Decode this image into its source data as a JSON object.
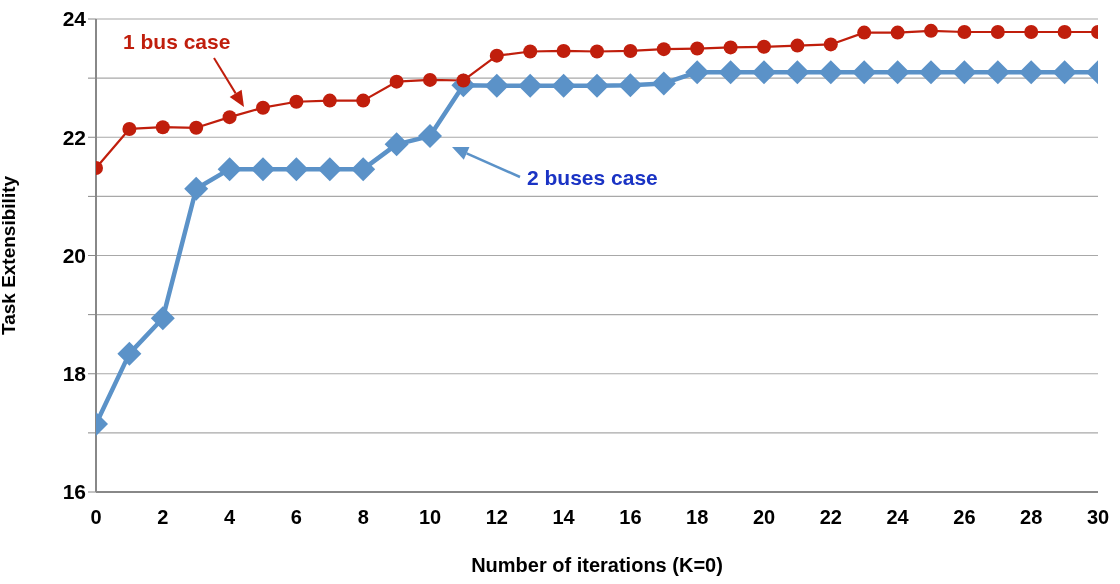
{
  "chart_data": {
    "type": "line",
    "xlabel": "Number of iterations (K=0)",
    "ylabel": "Task Extensibility",
    "x": [
      0,
      1,
      2,
      3,
      4,
      5,
      6,
      7,
      8,
      9,
      10,
      11,
      12,
      13,
      14,
      15,
      16,
      17,
      18,
      19,
      20,
      21,
      22,
      23,
      24,
      25,
      26,
      27,
      28,
      29,
      30
    ],
    "series": [
      {
        "name": "1 bus case",
        "color": "#c01e0c",
        "marker": "circle",
        "values": [
          21.48,
          22.14,
          22.17,
          22.16,
          22.34,
          22.5,
          22.6,
          22.62,
          22.62,
          22.94,
          22.97,
          22.96,
          23.38,
          23.45,
          23.46,
          23.45,
          23.46,
          23.49,
          23.5,
          23.52,
          23.53,
          23.55,
          23.57,
          23.77,
          23.77,
          23.8,
          23.78,
          23.78,
          23.78,
          23.78,
          23.78
        ]
      },
      {
        "name": "2 buses case",
        "color": "#5b92c8",
        "marker": "diamond",
        "values": [
          17.15,
          18.34,
          18.94,
          21.13,
          21.46,
          21.46,
          21.46,
          21.46,
          21.46,
          21.88,
          22.02,
          22.88,
          22.87,
          22.87,
          22.87,
          22.87,
          22.88,
          22.91,
          23.1,
          23.1,
          23.1,
          23.1,
          23.1,
          23.1,
          23.1,
          23.1,
          23.1,
          23.1,
          23.1,
          23.1,
          23.1
        ]
      }
    ],
    "xlim": [
      0,
      30
    ],
    "xticks": [
      0,
      2,
      4,
      6,
      8,
      10,
      12,
      14,
      16,
      18,
      20,
      22,
      24,
      26,
      28,
      30
    ],
    "ylim": [
      16,
      24
    ],
    "yticks": [
      16,
      {
        "value": 17,
        "label": null
      },
      18,
      {
        "value": 19,
        "label": null
      },
      20,
      {
        "value": 21,
        "label": null
      },
      22,
      {
        "value": 23,
        "label": null
      },
      24
    ],
    "grid": "y",
    "legend": "top left",
    "line_style": "solid"
  }
}
